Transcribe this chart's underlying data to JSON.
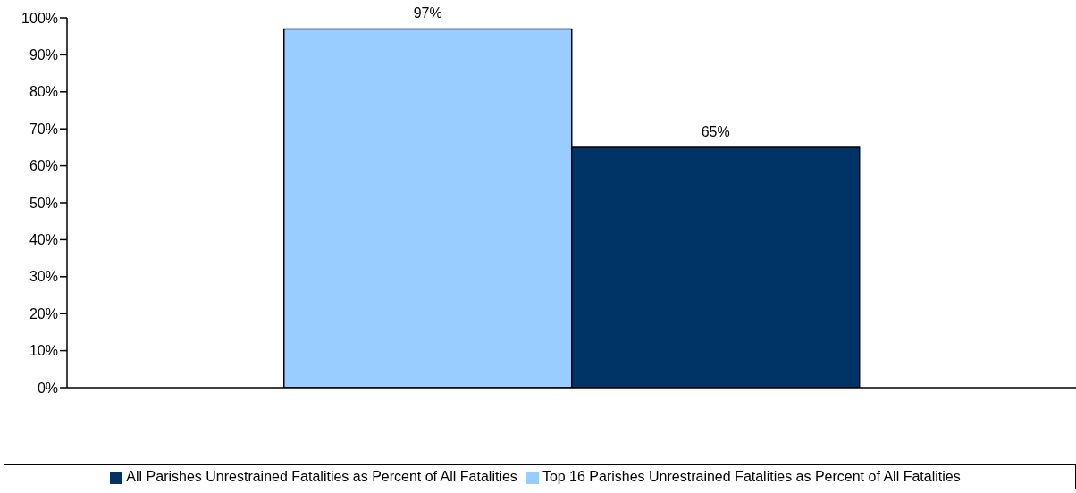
{
  "chart_data": {
    "type": "bar",
    "categories": [
      null
    ],
    "series": [
      {
        "name": "Top 16 Parishes Unrestrained Fatalities as Percent of All Fatalities",
        "color": "#99ccff",
        "values": [
          97
        ],
        "value_labels": [
          "97%"
        ]
      },
      {
        "name": "All Parishes Unrestrained Fatalities as Percent of All Fatalities",
        "color": "#003366",
        "values": [
          65
        ],
        "value_labels": [
          "65%"
        ]
      }
    ],
    "ylim": [
      0,
      100
    ],
    "yticks": [
      {
        "value": 0,
        "label": "0%"
      },
      {
        "value": 10,
        "label": "10%"
      },
      {
        "value": 20,
        "label": "20%"
      },
      {
        "value": 30,
        "label": "30%"
      },
      {
        "value": 40,
        "label": "40%"
      },
      {
        "value": 50,
        "label": "50%"
      },
      {
        "value": 60,
        "label": "60%"
      },
      {
        "value": 70,
        "label": "70%"
      },
      {
        "value": 80,
        "label": "80%"
      },
      {
        "value": 90,
        "label": "90%"
      },
      {
        "value": 100,
        "label": "100%"
      }
    ],
    "grid": false,
    "legend": "bottom"
  }
}
